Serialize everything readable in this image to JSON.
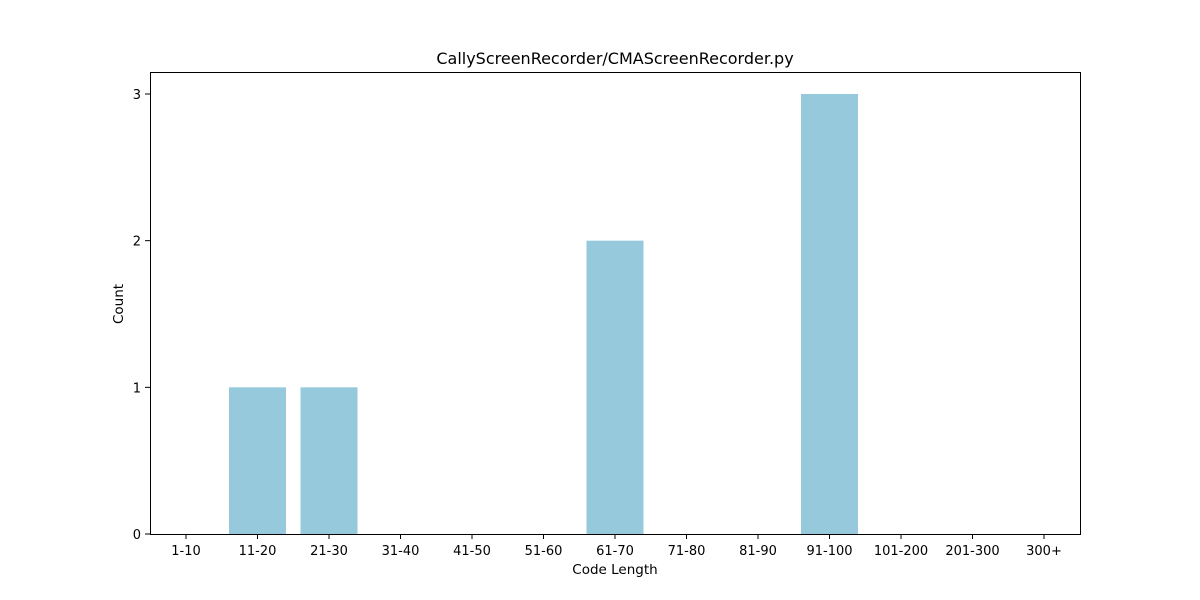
{
  "chart_data": {
    "type": "bar",
    "title": "CallyScreenRecorder/CMAScreenRecorder.py",
    "xlabel": "Code Length",
    "ylabel": "Count",
    "categories": [
      "1-10",
      "11-20",
      "21-30",
      "31-40",
      "41-50",
      "51-60",
      "61-70",
      "71-80",
      "81-90",
      "91-100",
      "101-200",
      "201-300",
      "300+"
    ],
    "values": [
      0,
      1,
      1,
      0,
      0,
      0,
      2,
      0,
      0,
      3,
      0,
      0,
      0
    ],
    "yticks": [
      0,
      1,
      2,
      3
    ],
    "ylim": [
      0,
      3.15
    ],
    "bar_color": "#96c9dc",
    "grid": false,
    "legend": "none"
  }
}
